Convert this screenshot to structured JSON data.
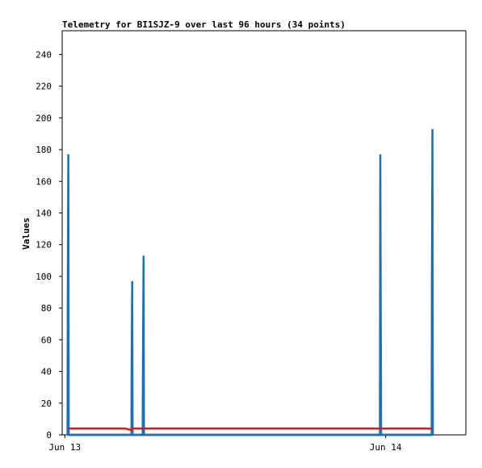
{
  "chart_data": {
    "type": "line",
    "title": "Telemetry for BI1SJZ-9 over last 96 hours (34 points)",
    "y_label": "Values",
    "xlim": [
      -0.2,
      30.0
    ],
    "xticks": [
      {
        "value": 0,
        "label": "Jun 13"
      },
      {
        "value": 24,
        "label": "Jun 14"
      }
    ],
    "ylim": [
      0,
      255
    ],
    "yticks": [
      0,
      20,
      40,
      60,
      80,
      100,
      120,
      140,
      160,
      180,
      200,
      220,
      240
    ],
    "series": [
      {
        "color": "#000000",
        "x": [
          0.26,
          27.5
        ],
        "values": [
          0,
          0
        ]
      },
      {
        "color": "#1f6fb5",
        "x": [
          0.2,
          0.22,
          0.26,
          0.29,
          4.98,
          5.0,
          5.04,
          5.07,
          5.82,
          5.85,
          5.89,
          5.92,
          23.57,
          23.6,
          23.63,
          23.66,
          27.44,
          27.46,
          27.5,
          27.53
        ],
        "values": [
          0,
          88,
          177,
          0,
          0,
          48,
          97,
          0,
          0,
          56,
          113,
          0,
          0,
          177,
          88,
          0,
          0,
          97,
          193,
          0
        ]
      },
      {
        "color": "#e8141c",
        "x": [
          0.26,
          4.5,
          5.0,
          5.1,
          27.5
        ],
        "values": [
          4,
          4,
          3,
          4,
          4
        ]
      }
    ]
  }
}
